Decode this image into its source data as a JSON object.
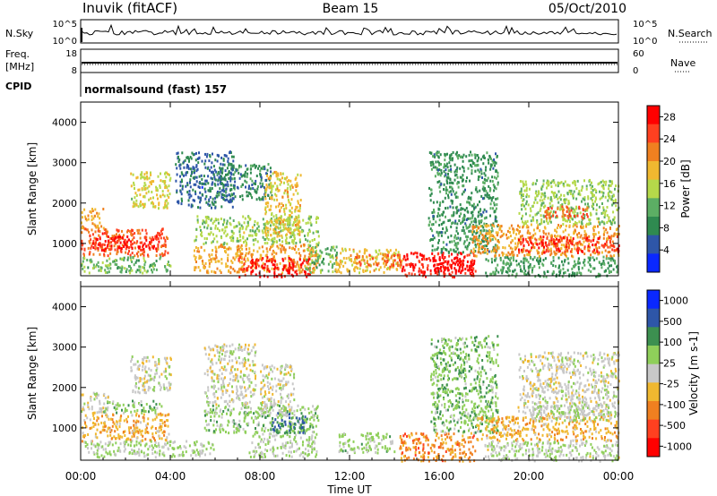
{
  "header": {
    "station": "Inuvik (fitACF)",
    "beam": "Beam 15",
    "date": "05/Oct/2010"
  },
  "top_panels": {
    "nsky_label": "N.Sky",
    "nsky_top_tick": "10^5",
    "nsky_bottom_tick": "10^0",
    "nsearch_label": "N.Search",
    "nsearch_top_tick": "10^5",
    "nsearch_bottom_tick": "10^0",
    "freq_label_1": "Freq.",
    "freq_label_2": "[MHz]",
    "freq_top_tick": "18",
    "freq_bottom_tick": "8",
    "nave_label": "Nave",
    "nave_top_tick": "60",
    "nave_bottom_tick": "0",
    "cpid_label": "CPID",
    "cpid_value": "normalsound (fast) 157"
  },
  "colors": {
    "power_scale": [
      "#0a28ff",
      "#2e56a8",
      "#2f8a50",
      "#5cae64",
      "#b5d94a",
      "#f0b830",
      "#f08020",
      "#ff4020",
      "#ff0000"
    ],
    "velocity_scale": [
      "#ff0000",
      "#ff4020",
      "#f08020",
      "#f0b830",
      "#c8c8c8",
      "#8fcf5a",
      "#3c9050",
      "#2e56a8",
      "#0a28ff"
    ]
  },
  "chart_data": [
    {
      "type": "heatmap",
      "panel": "power",
      "ylabel": "Slant Range [km]",
      "yticks": [
        "1000",
        "2000",
        "3000",
        "4000"
      ],
      "ylim": [
        200,
        4500
      ],
      "xlim": [
        0,
        24
      ],
      "colorbar_label": "Power [dB]",
      "colorbar_ticks": [
        "4",
        "8",
        "12",
        "16",
        "20",
        "24",
        "28"
      ],
      "colorbar_range": [
        0,
        30
      ],
      "regions": [
        {
          "t0": 0.0,
          "t1": 3.9,
          "r0": 700,
          "r1": 1400,
          "v": 24
        },
        {
          "t0": 0.5,
          "t1": 3.5,
          "r0": 850,
          "r1": 1200,
          "v": 28
        },
        {
          "t0": 0.0,
          "t1": 1.0,
          "r0": 1400,
          "r1": 1900,
          "v": 20
        },
        {
          "t0": 2.2,
          "t1": 4.0,
          "r0": 1900,
          "r1": 2800,
          "v": 16
        },
        {
          "t0": 0.0,
          "t1": 4.0,
          "r0": 300,
          "r1": 700,
          "v": 12
        },
        {
          "t0": 4.2,
          "t1": 6.8,
          "r0": 1900,
          "r1": 3300,
          "v": 6
        },
        {
          "t0": 6.0,
          "t1": 8.5,
          "r0": 2100,
          "r1": 3000,
          "v": 8
        },
        {
          "t0": 5.0,
          "t1": 10.6,
          "r0": 1000,
          "r1": 1700,
          "v": 14
        },
        {
          "t0": 5.0,
          "t1": 10.6,
          "r0": 300,
          "r1": 1000,
          "v": 20
        },
        {
          "t0": 7.0,
          "t1": 10.2,
          "r0": 200,
          "r1": 700,
          "v": 28
        },
        {
          "t0": 8.2,
          "t1": 9.8,
          "r0": 1200,
          "r1": 2800,
          "v": 18
        },
        {
          "t0": 10.0,
          "t1": 11.4,
          "r0": 300,
          "r1": 1000,
          "v": 12
        },
        {
          "t0": 11.2,
          "t1": 14.3,
          "r0": 300,
          "r1": 900,
          "v": 18
        },
        {
          "t0": 12.2,
          "t1": 14.3,
          "r0": 450,
          "r1": 750,
          "v": 24
        },
        {
          "t0": 14.3,
          "t1": 17.6,
          "r0": 200,
          "r1": 800,
          "v": 27
        },
        {
          "t0": 15.6,
          "t1": 17.5,
          "r0": 300,
          "r1": 700,
          "v": 30
        },
        {
          "t0": 15.5,
          "t1": 18.6,
          "r0": 800,
          "r1": 3300,
          "v": 9
        },
        {
          "t0": 17.4,
          "t1": 24.0,
          "r0": 700,
          "r1": 1500,
          "v": 20
        },
        {
          "t0": 19.5,
          "t1": 24.0,
          "r0": 800,
          "r1": 1200,
          "v": 26
        },
        {
          "t0": 19.5,
          "t1": 24.0,
          "r0": 1500,
          "r1": 2600,
          "v": 14
        },
        {
          "t0": 20.6,
          "t1": 22.6,
          "r0": 1650,
          "r1": 1950,
          "v": 24
        },
        {
          "t0": 18.0,
          "t1": 24.0,
          "r0": 200,
          "r1": 700,
          "v": 10
        }
      ]
    },
    {
      "type": "heatmap",
      "panel": "velocity",
      "ylabel": "Slant Range [km]",
      "yticks": [
        "1000",
        "2000",
        "3000",
        "4000"
      ],
      "ylim": [
        200,
        4500
      ],
      "xlim": [
        0,
        24
      ],
      "colorbar_label": "Velocity [m s-1]",
      "colorbar_ticks": [
        "1000",
        "500",
        "100",
        "25",
        "-25",
        "-100",
        "-500",
        "-1000"
      ],
      "colorbar_range": [
        -1200,
        1200
      ],
      "regions": [
        {
          "t0": 0.0,
          "t1": 3.9,
          "r0": 700,
          "r1": 1400,
          "v": -300
        },
        {
          "t0": 0.0,
          "t1": 1.2,
          "r0": 1400,
          "r1": 1900,
          "v": -60
        },
        {
          "t0": 1.0,
          "t1": 3.6,
          "r0": 1400,
          "r1": 1700,
          "v": 300
        },
        {
          "t0": 2.2,
          "t1": 4.0,
          "r0": 1900,
          "r1": 2800,
          "v": 0
        },
        {
          "t0": 0.0,
          "t1": 6.0,
          "r0": 300,
          "r1": 700,
          "v": 150
        },
        {
          "t0": 5.5,
          "t1": 7.8,
          "r0": 1600,
          "r1": 3100,
          "v": 0
        },
        {
          "t0": 5.5,
          "t1": 10.6,
          "r0": 900,
          "r1": 1600,
          "v": 250
        },
        {
          "t0": 7.5,
          "t1": 10.5,
          "r0": 300,
          "r1": 900,
          "v": 150
        },
        {
          "t0": 8.5,
          "t1": 10.0,
          "r0": 900,
          "r1": 1400,
          "v": 700
        },
        {
          "t0": 8.0,
          "t1": 9.5,
          "r0": 1300,
          "r1": 2600,
          "v": 0
        },
        {
          "t0": 11.5,
          "t1": 14.0,
          "r0": 400,
          "r1": 900,
          "v": 200
        },
        {
          "t0": 14.2,
          "t1": 17.6,
          "r0": 200,
          "r1": 900,
          "v": -500
        },
        {
          "t0": 15.6,
          "t1": 18.6,
          "r0": 900,
          "r1": 3300,
          "v": 300
        },
        {
          "t0": 17.6,
          "t1": 24.0,
          "r0": 700,
          "r1": 1300,
          "v": -300
        },
        {
          "t0": 19.5,
          "t1": 24.0,
          "r0": 1300,
          "r1": 2900,
          "v": 0
        },
        {
          "t0": 20.0,
          "t1": 24.0,
          "r0": 1200,
          "r1": 1600,
          "v": 120
        },
        {
          "t0": 18.0,
          "t1": 24.0,
          "r0": 200,
          "r1": 700,
          "v": 80
        }
      ]
    }
  ],
  "x_axis": {
    "ticks": [
      "00:00",
      "04:00",
      "08:00",
      "12:00",
      "16:00",
      "20:00",
      "00:00"
    ],
    "tick_hours": [
      0,
      4,
      8,
      12,
      16,
      20,
      24
    ],
    "label": "Time UT"
  }
}
